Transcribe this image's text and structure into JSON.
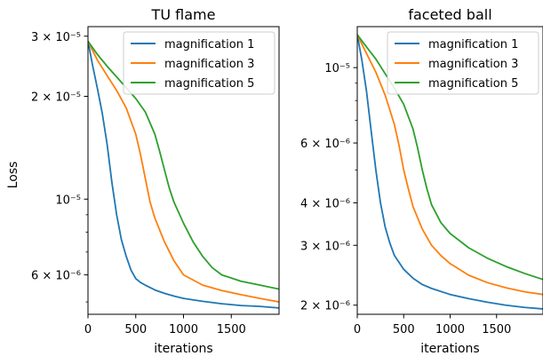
{
  "figure": {
    "ylabel": "Loss"
  },
  "chart_data": [
    {
      "type": "line",
      "title": "TU flame",
      "xlabel": "iterations",
      "ylabel": "Loss",
      "yscale": "log",
      "xlim": [
        0,
        2000
      ],
      "ylim": [
        4.6e-06,
        3.2e-05
      ],
      "grid": false,
      "legend_position": "top-right",
      "xticks": [
        0,
        500,
        1000,
        1500
      ],
      "xtick_labels": [
        "0",
        "500",
        "1000",
        "1500"
      ],
      "yticks": [
        3e-05,
        2e-05,
        1e-05,
        6e-06
      ],
      "ytick_labels": [
        "3 × 10⁻⁵",
        "2 × 10⁻⁵",
        "10⁻⁵",
        "6 × 10⁻⁶"
      ],
      "series": [
        {
          "name": "magnification 1",
          "color": "#1f77b4",
          "x": [
            0,
            50,
            100,
            150,
            200,
            250,
            300,
            350,
            400,
            450,
            500,
            550,
            600,
            700,
            800,
            900,
            1000,
            1200,
            1400,
            1600,
            1800,
            2000
          ],
          "y": [
            2.9e-05,
            2.45e-05,
            2.1e-05,
            1.78e-05,
            1.45e-05,
            1.12e-05,
            9e-06,
            7.6e-06,
            6.8e-06,
            6.2e-06,
            5.85e-06,
            5.7e-06,
            5.6e-06,
            5.42e-06,
            5.3e-06,
            5.2e-06,
            5.12e-06,
            5.02e-06,
            4.94e-06,
            4.88e-06,
            4.85e-06,
            4.8e-06
          ]
        },
        {
          "name": "magnification 3",
          "color": "#ff7f0e",
          "x": [
            0,
            100,
            200,
            300,
            400,
            500,
            550,
            600,
            650,
            700,
            800,
            900,
            1000,
            1200,
            1400,
            1600,
            1800,
            2000
          ],
          "y": [
            2.9e-05,
            2.55e-05,
            2.3e-05,
            2.08e-05,
            1.85e-05,
            1.55e-05,
            1.35e-05,
            1.15e-05,
            9.8e-06,
            8.8e-06,
            7.5e-06,
            6.6e-06,
            6e-06,
            5.6e-06,
            5.4e-06,
            5.25e-06,
            5.12e-06,
            5e-06
          ]
        },
        {
          "name": "magnification 5",
          "color": "#2ca02c",
          "x": [
            0,
            100,
            200,
            300,
            400,
            500,
            600,
            700,
            750,
            800,
            850,
            900,
            1000,
            1100,
            1200,
            1300,
            1400,
            1600,
            1800,
            2000
          ],
          "y": [
            2.9e-05,
            2.65e-05,
            2.45e-05,
            2.28e-05,
            2.12e-05,
            1.97e-05,
            1.8e-05,
            1.55e-05,
            1.38e-05,
            1.22e-05,
            1.08e-05,
            9.8e-06,
            8.5e-06,
            7.5e-06,
            6.8e-06,
            6.3e-06,
            6e-06,
            5.75e-06,
            5.6e-06,
            5.45e-06
          ]
        }
      ]
    },
    {
      "type": "line",
      "title": "faceted ball",
      "xlabel": "iterations",
      "ylabel": "",
      "yscale": "log",
      "xlim": [
        0,
        2000
      ],
      "ylim": [
        1.88e-06,
        1.32e-05
      ],
      "grid": false,
      "legend_position": "top-right",
      "xticks": [
        0,
        500,
        1000,
        1500
      ],
      "xtick_labels": [
        "0",
        "500",
        "1000",
        "1500"
      ],
      "yticks": [
        1e-05,
        6e-06,
        4e-06,
        3e-06,
        2e-06
      ],
      "ytick_labels": [
        "10⁻⁵",
        "6 × 10⁻⁶",
        "4 × 10⁻⁶",
        "3 × 10⁻⁶",
        "2 × 10⁻⁶"
      ],
      "series": [
        {
          "name": "magnification 1",
          "color": "#1f77b4",
          "x": [
            0,
            50,
            100,
            150,
            200,
            250,
            300,
            350,
            400,
            500,
            600,
            700,
            800,
            1000,
            1200,
            1400,
            1600,
            1800,
            2000
          ],
          "y": [
            1.25e-05,
            1.05e-05,
            8.5e-06,
            6.5e-06,
            5e-06,
            4e-06,
            3.4e-06,
            3.05e-06,
            2.8e-06,
            2.55e-06,
            2.4e-06,
            2.3e-06,
            2.24e-06,
            2.15e-06,
            2.09e-06,
            2.04e-06,
            2e-06,
            1.97e-06,
            1.95e-06
          ]
        },
        {
          "name": "magnification 3",
          "color": "#ff7f0e",
          "x": [
            0,
            100,
            200,
            300,
            400,
            450,
            500,
            550,
            600,
            700,
            800,
            900,
            1000,
            1200,
            1400,
            1600,
            1800,
            2000
          ],
          "y": [
            1.25e-05,
            1.1e-05,
            9.7e-06,
            8.3e-06,
            6.8e-06,
            5.9e-06,
            5e-06,
            4.4e-06,
            3.9e-06,
            3.35e-06,
            3e-06,
            2.8e-06,
            2.65e-06,
            2.45e-06,
            2.33e-06,
            2.25e-06,
            2.19e-06,
            2.15e-06
          ]
        },
        {
          "name": "magnification 5",
          "color": "#2ca02c",
          "x": [
            0,
            100,
            200,
            300,
            400,
            500,
            600,
            650,
            700,
            750,
            800,
            900,
            1000,
            1200,
            1400,
            1600,
            1800,
            2000
          ],
          "y": [
            1.25e-05,
            1.15e-05,
            1.06e-05,
            9.6e-06,
            8.7e-06,
            7.8e-06,
            6.6e-06,
            5.8e-06,
            5e-06,
            4.4e-06,
            3.95e-06,
            3.5e-06,
            3.25e-06,
            2.95e-06,
            2.75e-06,
            2.6e-06,
            2.48e-06,
            2.38e-06
          ]
        }
      ]
    }
  ]
}
